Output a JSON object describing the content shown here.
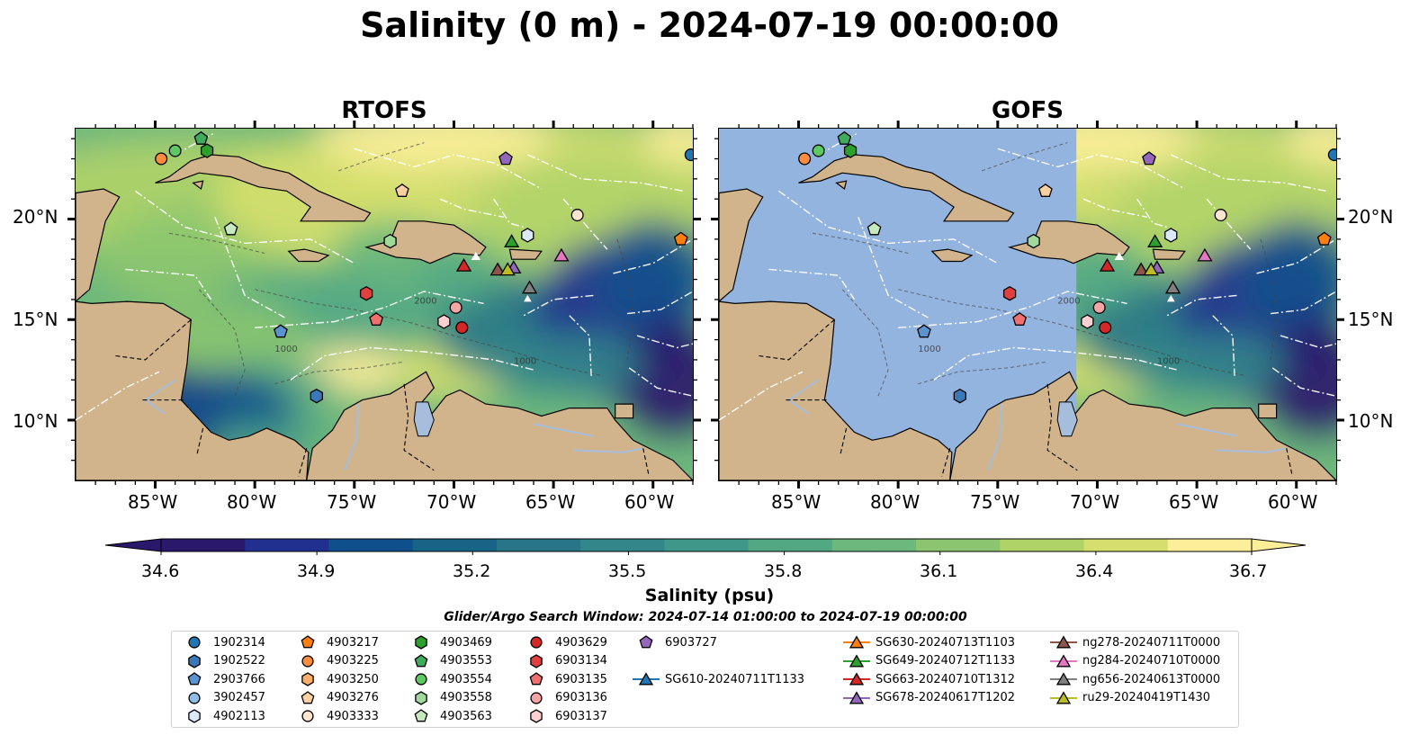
{
  "title": "Salinity (0 m) - 2024-07-19 00:00:00",
  "panels": [
    {
      "id": "rtofs",
      "title": "RTOFS",
      "coverage": "full"
    },
    {
      "id": "gofs",
      "title": "GOFS",
      "coverage": "partial-east"
    }
  ],
  "map": {
    "lon_range": [
      -89,
      -58
    ],
    "lat_range": [
      7,
      24.5
    ],
    "x_ticks": [
      "85°W",
      "80°W",
      "75°W",
      "70°W",
      "65°W",
      "60°W"
    ],
    "y_ticks": [
      "20°N",
      "15°N",
      "10°N"
    ],
    "land_color": "#d2b48c",
    "missing_color": "#94b4e0",
    "river_color": "#a6bddb",
    "eez_color": "#ffffff",
    "bathy_labels": [
      "1000",
      "1000",
      "2000"
    ]
  },
  "colorbar": {
    "label": "Salinity (psu)",
    "ticks": [
      "34.6",
      "34.9",
      "35.2",
      "35.5",
      "35.8",
      "36.1",
      "36.4",
      "36.7"
    ],
    "vmin": 34.6,
    "vmax": 36.7,
    "extend": "both",
    "colormap": "haline",
    "colors": [
      "#2a186c",
      "#21308f",
      "#0f4f8c",
      "#176487",
      "#277587",
      "#33868a",
      "#3f978a",
      "#53a884",
      "#6db87c",
      "#8bc56f",
      "#b0d368",
      "#d4df6d",
      "#fdee99"
    ]
  },
  "search_window": "Glider/Argo Search Window: 2024-07-14 01:00:00 to 2024-07-19 00:00:00",
  "legend": {
    "columns": [
      [
        {
          "label": "1902314",
          "shape": "circle",
          "color": "#1f77b4"
        },
        {
          "label": "1902522",
          "shape": "hexagon",
          "color": "#3a78b8"
        },
        {
          "label": "2903766",
          "shape": "pentagon",
          "color": "#5a93d0"
        },
        {
          "label": "3902457",
          "shape": "circle",
          "color": "#8fbce6"
        },
        {
          "label": "4902113",
          "shape": "hexagon",
          "color": "#dbe9f8"
        }
      ],
      [
        {
          "label": "4903217",
          "shape": "pentagon",
          "color": "#ff7f0e"
        },
        {
          "label": "4903225",
          "shape": "circle",
          "color": "#fd8d3c"
        },
        {
          "label": "4903250",
          "shape": "hexagon",
          "color": "#fdae6b"
        },
        {
          "label": "4903276",
          "shape": "pentagon",
          "color": "#fdd0a2"
        },
        {
          "label": "4903333",
          "shape": "circle",
          "color": "#fee6ce"
        }
      ],
      [
        {
          "label": "4903469",
          "shape": "hexagon",
          "color": "#2ca02c"
        },
        {
          "label": "4903553",
          "shape": "pentagon",
          "color": "#41ab5d"
        },
        {
          "label": "4903554",
          "shape": "circle",
          "color": "#5ec962"
        },
        {
          "label": "4903558",
          "shape": "hexagon",
          "color": "#a1d99b"
        },
        {
          "label": "4903563",
          "shape": "pentagon",
          "color": "#c7e9c0"
        }
      ],
      [
        {
          "label": "4903629",
          "shape": "circle",
          "color": "#d62728"
        },
        {
          "label": "6903134",
          "shape": "hexagon",
          "color": "#e0403f"
        },
        {
          "label": "6903135",
          "shape": "pentagon",
          "color": "#f07070"
        },
        {
          "label": "6903136",
          "shape": "circle",
          "color": "#f4a6a6"
        },
        {
          "label": "6903137",
          "shape": "hexagon",
          "color": "#fcd0d0"
        }
      ],
      [
        {
          "label": "6903727",
          "shape": "pentagon",
          "color": "#9467bd"
        },
        {
          "label": "SG610-20240711T1133",
          "shape": "triangle-line",
          "color": "#1f77b4"
        }
      ],
      [
        {
          "label": "SG630-20240713T1103",
          "shape": "triangle-line",
          "color": "#ff7f0e"
        },
        {
          "label": "SG649-20240712T1133",
          "shape": "triangle-line",
          "color": "#2ca02c"
        },
        {
          "label": "SG663-20240710T1312",
          "shape": "triangle-line",
          "color": "#d62728"
        },
        {
          "label": "SG678-20240617T1202",
          "shape": "triangle-line",
          "color": "#9467bd"
        }
      ],
      [
        {
          "label": "ng278-20240711T0000",
          "shape": "triangle-line",
          "color": "#8c564b"
        },
        {
          "label": "ng284-20240710T0000",
          "shape": "triangle-line",
          "color": "#e377c2"
        },
        {
          "label": "ng656-20240613T0000",
          "shape": "triangle-line",
          "color": "#7f7f7f"
        },
        {
          "label": "ru29-20240419T1430",
          "shape": "triangle-line",
          "color": "#bcbd22"
        }
      ]
    ]
  },
  "markers": [
    {
      "lon": -84.7,
      "lat": 23.0,
      "shape": "circle",
      "color": "#fd8d3c"
    },
    {
      "lon": -84.0,
      "lat": 23.4,
      "shape": "circle",
      "color": "#5ec962"
    },
    {
      "lon": -82.7,
      "lat": 24.0,
      "shape": "pentagon",
      "color": "#41ab5d"
    },
    {
      "lon": -82.4,
      "lat": 23.4,
      "shape": "hexagon",
      "color": "#2ca02c"
    },
    {
      "lon": -81.2,
      "lat": 19.5,
      "shape": "pentagon",
      "color": "#c7e9c0"
    },
    {
      "lon": -78.7,
      "lat": 14.4,
      "shape": "pentagon",
      "color": "#5a93d0"
    },
    {
      "lon": -76.9,
      "lat": 11.2,
      "shape": "hexagon",
      "color": "#3a78b8"
    },
    {
      "lon": -74.4,
      "lat": 16.3,
      "shape": "hexagon",
      "color": "#e0403f"
    },
    {
      "lon": -73.9,
      "lat": 15.0,
      "shape": "pentagon",
      "color": "#f07070"
    },
    {
      "lon": -73.2,
      "lat": 18.9,
      "shape": "hexagon",
      "color": "#a1d99b"
    },
    {
      "lon": -72.6,
      "lat": 21.4,
      "shape": "pentagon",
      "color": "#fdd0a2"
    },
    {
      "lon": -69.9,
      "lat": 15.6,
      "shape": "circle",
      "color": "#f4a6a6"
    },
    {
      "lon": -70.5,
      "lat": 14.9,
      "shape": "hexagon",
      "color": "#fcd0d0"
    },
    {
      "lon": -69.6,
      "lat": 14.6,
      "shape": "circle",
      "color": "#d62728"
    },
    {
      "lon": -69.5,
      "lat": 17.7,
      "shape": "triangle",
      "color": "#d62728"
    },
    {
      "lon": -67.8,
      "lat": 17.5,
      "shape": "triangle",
      "color": "#8c564b"
    },
    {
      "lon": -67.0,
      "lat": 17.6,
      "shape": "triangle",
      "color": "#9467bd"
    },
    {
      "lon": -67.3,
      "lat": 17.5,
      "shape": "triangle",
      "color": "#bcbd22"
    },
    {
      "lon": -67.1,
      "lat": 18.9,
      "shape": "triangle",
      "color": "#2ca02c"
    },
    {
      "lon": -66.2,
      "lat": 16.6,
      "shape": "triangle",
      "color": "#7f7f7f"
    },
    {
      "lon": -66.3,
      "lat": 19.2,
      "shape": "hexagon",
      "color": "#dbe9f8"
    },
    {
      "lon": -64.6,
      "lat": 18.2,
      "shape": "triangle",
      "color": "#e377c2"
    },
    {
      "lon": -63.8,
      "lat": 20.2,
      "shape": "circle",
      "color": "#fee6ce"
    },
    {
      "lon": -67.4,
      "lat": 23.0,
      "shape": "pentagon",
      "color": "#9467bd"
    },
    {
      "lon": -58.1,
      "lat": 23.2,
      "shape": "circle",
      "color": "#1f77b4"
    },
    {
      "lon": -58.6,
      "lat": 19.0,
      "shape": "pentagon",
      "color": "#ff7f0e"
    }
  ]
}
